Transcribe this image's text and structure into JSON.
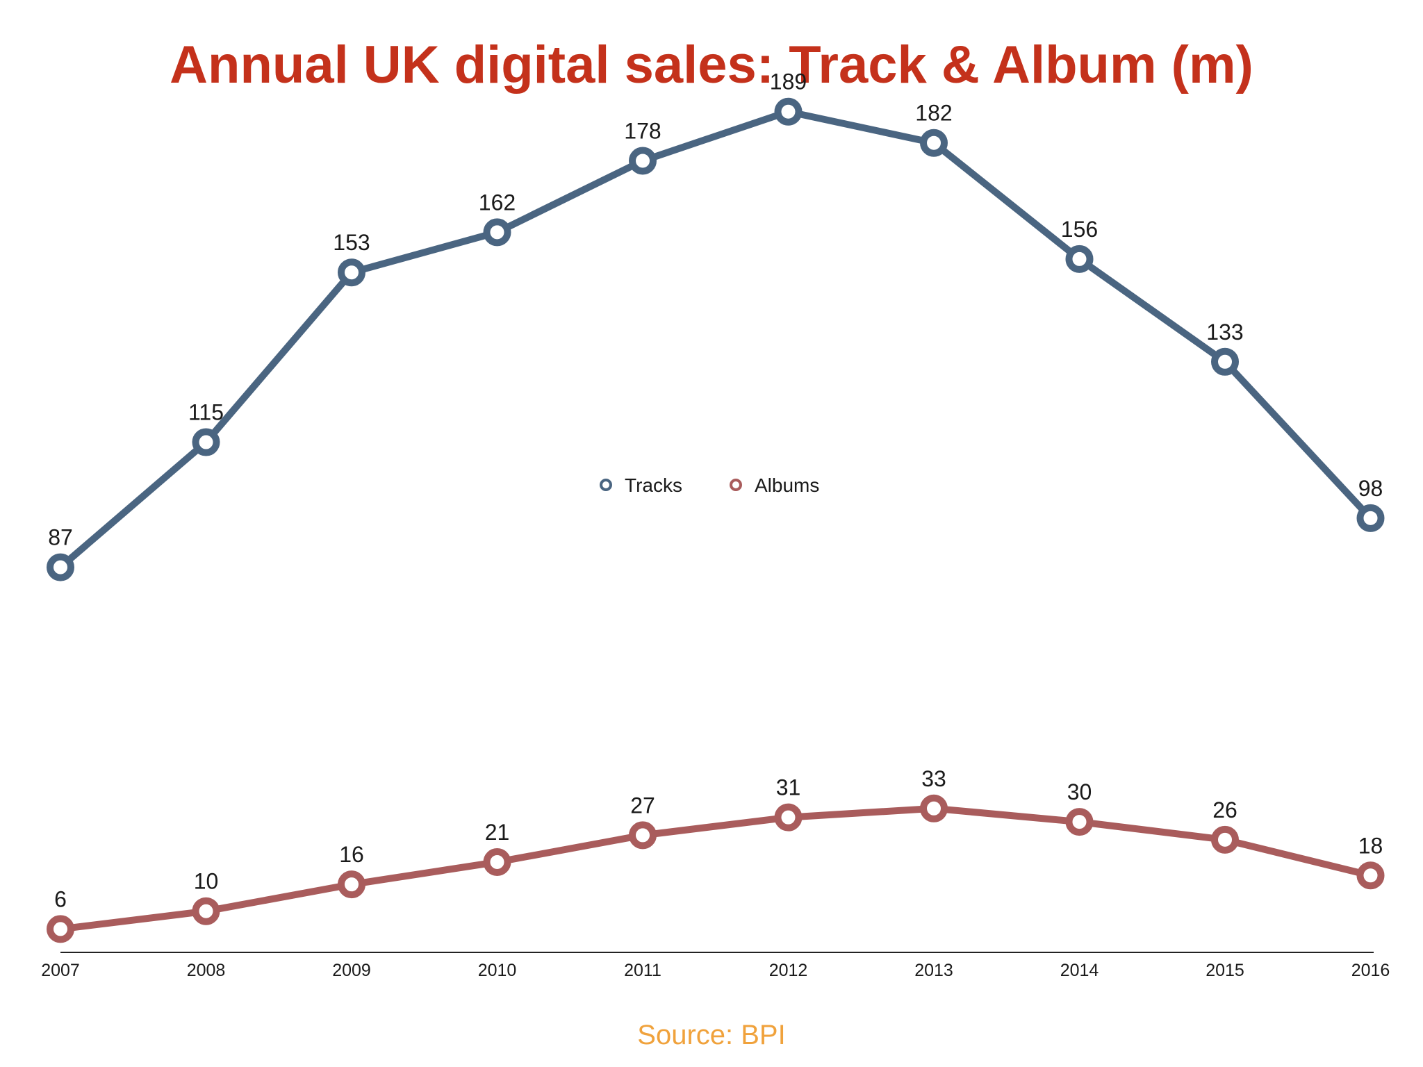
{
  "chart_data": {
    "type": "line",
    "title": "Annual UK digital sales: Track & Album (m)",
    "xlabel": "",
    "ylabel": "",
    "x": [
      "2007",
      "2008",
      "2009",
      "2010",
      "2011",
      "2012",
      "2013",
      "2014",
      "2015",
      "2016"
    ],
    "series": [
      {
        "name": "Tracks",
        "color": "#4a6581",
        "values": [
          87,
          115,
          153,
          162,
          178,
          189,
          182,
          156,
          133,
          98
        ]
      },
      {
        "name": "Albums",
        "color": "#a95c5c",
        "values": [
          6,
          10,
          16,
          21,
          27,
          31,
          33,
          30,
          26,
          18
        ]
      }
    ],
    "ylim": [
      0,
      189
    ],
    "grid": false,
    "legend": "center",
    "data_labels": true
  },
  "source": "Source: BPI",
  "colors": {
    "title": "#c4311b",
    "source": "#f0a23c",
    "axis": "#222222"
  }
}
